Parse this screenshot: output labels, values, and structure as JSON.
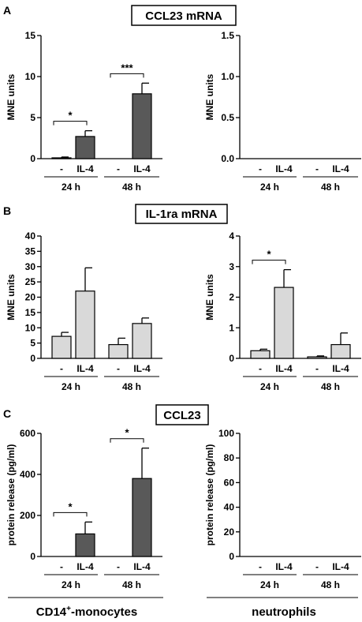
{
  "colors": {
    "dark_bar": "#595959",
    "light_bar": "#d9d9d9",
    "axis": "#000000"
  },
  "panels": [
    {
      "letter": "A",
      "title": "CCL23 mRNA"
    },
    {
      "letter": "B",
      "title": "IL-1ra mRNA"
    },
    {
      "letter": "C",
      "title": "CCL23"
    }
  ],
  "footer": {
    "monocytes": {
      "pre": "CD14",
      "sup": "+",
      "post": "-monocytes"
    },
    "neutrophils": "neutrophils"
  },
  "chart_data": [
    {
      "id": "A-monocytes",
      "type": "bar",
      "panel": "A",
      "cell_type": "CD14+-monocytes",
      "ylabel": "MNE units",
      "ylim": [
        0,
        15
      ],
      "yticks": [
        "0",
        "5",
        "10",
        "15"
      ],
      "categories": [
        "-",
        "IL-4",
        "-",
        "IL-4"
      ],
      "groups": [
        "24 h",
        "48 h"
      ],
      "values": [
        0.1,
        2.7,
        0,
        7.9
      ],
      "errors": [
        0.1,
        0.7,
        0,
        1.3
      ],
      "bar_color": "#595959",
      "significance": [
        {
          "between": [
            0,
            1
          ],
          "label": "*"
        },
        {
          "between": [
            2,
            3
          ],
          "label": "***"
        }
      ]
    },
    {
      "id": "A-neutrophils",
      "type": "bar",
      "panel": "A",
      "cell_type": "neutrophils",
      "ylabel": "MNE units",
      "ylim": [
        0,
        1.5
      ],
      "yticks": [
        "0.0",
        "0.5",
        "1.0",
        "1.5"
      ],
      "categories": [
        "-",
        "IL-4",
        "-",
        "IL-4"
      ],
      "groups": [
        "24 h",
        "48 h"
      ],
      "values": [
        0,
        0,
        0,
        0
      ],
      "errors": [
        0,
        0,
        0,
        0
      ],
      "bar_color": "#595959",
      "significance": []
    },
    {
      "id": "B-monocytes",
      "type": "bar",
      "panel": "B",
      "cell_type": "CD14+-monocytes",
      "ylabel": "MNE units",
      "ylim": [
        0,
        40
      ],
      "yticks": [
        "0",
        "5",
        "10",
        "15",
        "20",
        "25",
        "30",
        "35",
        "40"
      ],
      "categories": [
        "-",
        "IL-4",
        "-",
        "IL-4"
      ],
      "groups": [
        "24 h",
        "48 h"
      ],
      "values": [
        7.2,
        22,
        4.5,
        11.4
      ],
      "errors": [
        1.3,
        7.6,
        2.1,
        1.8
      ],
      "bar_color": "#d9d9d9",
      "significance": []
    },
    {
      "id": "B-neutrophils",
      "type": "bar",
      "panel": "B",
      "cell_type": "neutrophils",
      "ylabel": "MNE units",
      "ylim": [
        0,
        4
      ],
      "yticks": [
        "0",
        "1",
        "2",
        "3",
        "4"
      ],
      "categories": [
        "-",
        "IL-4",
        "-",
        "IL-4"
      ],
      "groups": [
        "24 h",
        "48 h"
      ],
      "values": [
        0.25,
        2.32,
        0.05,
        0.45
      ],
      "errors": [
        0.05,
        0.58,
        0.03,
        0.38
      ],
      "bar_color": "#d9d9d9",
      "significance": [
        {
          "between": [
            0,
            1
          ],
          "label": "*"
        }
      ]
    },
    {
      "id": "C-monocytes",
      "type": "bar",
      "panel": "C",
      "cell_type": "CD14+-monocytes",
      "ylabel": "protein release (pg/ml)",
      "ylim": [
        0,
        600
      ],
      "yticks": [
        "0",
        "200",
        "400",
        "600"
      ],
      "categories": [
        "-",
        "IL-4",
        "-",
        "IL-4"
      ],
      "groups": [
        "24 h",
        "48 h"
      ],
      "values": [
        0,
        110,
        0,
        380
      ],
      "errors": [
        0,
        58,
        0,
        148
      ],
      "bar_color": "#595959",
      "significance": [
        {
          "between": [
            0,
            1
          ],
          "label": "*"
        },
        {
          "between": [
            2,
            3
          ],
          "label": "*"
        }
      ]
    },
    {
      "id": "C-neutrophils",
      "type": "bar",
      "panel": "C",
      "cell_type": "neutrophils",
      "ylabel": "protein release (pg/ml)",
      "ylim": [
        0,
        100
      ],
      "yticks": [
        "0",
        "20",
        "40",
        "60",
        "80",
        "100"
      ],
      "categories": [
        "-",
        "IL-4",
        "-",
        "IL-4"
      ],
      "groups": [
        "24 h",
        "48 h"
      ],
      "values": [
        0,
        0,
        0,
        0
      ],
      "errors": [
        0,
        0,
        0,
        0
      ],
      "bar_color": "#595959",
      "significance": []
    }
  ]
}
